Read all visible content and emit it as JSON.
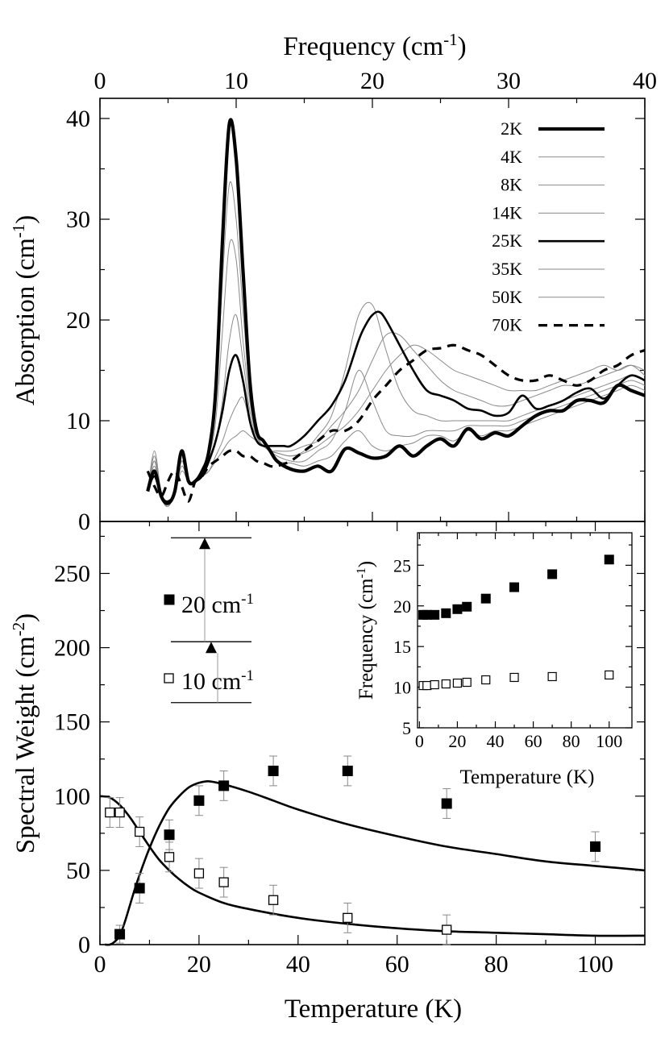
{
  "chart_data": [
    {
      "type": "line",
      "name": "absorption-spectra",
      "title": "",
      "xlabel": "Frequency (cm",
      "xlabel_sup": "-1",
      "xlabel_close": ")",
      "xlabel_position": "top",
      "ylabel": "Absorption (cm",
      "ylabel_sup": "-1",
      "ylabel_close": ")",
      "xlim": [
        0,
        40
      ],
      "ylim": [
        0,
        42
      ],
      "xticks": [
        0,
        10,
        20,
        30,
        40
      ],
      "yticks": [
        0,
        10,
        20,
        30,
        40
      ],
      "legend_position": "top-right",
      "series": [
        {
          "name": "2K",
          "style": "thick",
          "x": [
            3.5,
            4,
            4.5,
            5,
            5.5,
            6,
            6.5,
            7,
            7.5,
            8,
            8.5,
            9,
            9.5,
            10,
            10.5,
            11,
            11.5,
            12,
            12.5,
            13,
            14,
            15,
            16,
            17,
            18,
            19,
            20,
            21,
            22,
            23,
            24,
            25,
            26,
            27,
            28,
            29,
            30,
            31,
            32,
            33,
            34,
            35,
            36,
            37,
            38,
            39,
            40
          ],
          "y": [
            3,
            5,
            2.5,
            1.8,
            3,
            7,
            4,
            4,
            5,
            7,
            13,
            28,
            39.5,
            36,
            25,
            14,
            9,
            8,
            7,
            6,
            5.2,
            5,
            5.5,
            5,
            7.2,
            6.8,
            6.3,
            6.5,
            7.5,
            6.5,
            7.5,
            8.2,
            7.5,
            9.2,
            8.2,
            8.8,
            8.5,
            9.5,
            10.5,
            11,
            11,
            12,
            12,
            11.8,
            13.5,
            13,
            12.5
          ]
        },
        {
          "name": "4K",
          "style": "thin",
          "x": [
            3.5,
            4,
            4.5,
            5,
            5.5,
            6,
            6.5,
            7,
            7.5,
            8,
            8.5,
            9,
            9.5,
            10,
            10.5,
            11,
            11.5,
            12,
            12.5,
            13,
            14,
            15,
            16,
            17,
            18,
            19,
            20,
            21,
            22,
            23,
            24,
            25,
            26,
            27,
            28,
            29,
            30,
            31,
            32,
            33,
            34,
            35,
            36,
            37,
            38,
            39,
            40
          ],
          "y": [
            3,
            6,
            2.5,
            1.5,
            3,
            6,
            4,
            4,
            5,
            7,
            12,
            24,
            33.5,
            30,
            21,
            13,
            9,
            8,
            7,
            6,
            5.8,
            5.5,
            6,
            6.5,
            8,
            9,
            7.5,
            7,
            7.5,
            7.8,
            8.5,
            8.5,
            8,
            9,
            8.5,
            9,
            9,
            9.5,
            10,
            10.5,
            11,
            11.5,
            12,
            12.5,
            13,
            13.5,
            13
          ]
        },
        {
          "name": "8K",
          "style": "thin",
          "x": [
            3.5,
            4,
            4.5,
            5,
            5.5,
            6,
            6.5,
            7,
            7.5,
            8,
            8.5,
            9,
            9.5,
            10,
            10.5,
            11,
            11.5,
            12,
            12.5,
            13,
            14,
            15,
            16,
            17,
            18,
            19,
            20,
            21,
            22,
            23,
            24,
            25,
            26,
            27,
            28,
            29,
            30,
            31,
            32,
            33,
            34,
            35,
            36,
            37,
            38,
            39,
            40
          ],
          "y": [
            3,
            6.5,
            2.5,
            1.5,
            3,
            6,
            4,
            4,
            5,
            6.5,
            10,
            19,
            27.5,
            26,
            18,
            12,
            8.5,
            7.5,
            7,
            6.5,
            6,
            6,
            7,
            8,
            11,
            15,
            12,
            9,
            8.5,
            8.5,
            9,
            9,
            9,
            9.5,
            9.5,
            9.5,
            9.5,
            10,
            10.5,
            11,
            11.5,
            12,
            12.5,
            13,
            13.5,
            14,
            13.5
          ]
        },
        {
          "name": "14K",
          "style": "thin",
          "x": [
            3.5,
            4,
            4.5,
            5,
            5.5,
            6,
            6.5,
            7,
            7.5,
            8,
            8.5,
            9,
            9.5,
            10,
            10.5,
            11,
            11.5,
            12,
            12.5,
            13,
            14,
            15,
            16,
            17,
            18,
            19,
            20,
            21,
            22,
            23,
            24,
            25,
            26,
            27,
            28,
            29,
            30,
            31,
            32,
            33,
            34,
            35,
            36,
            37,
            38,
            39,
            40
          ],
          "y": [
            3,
            7,
            2.8,
            1.5,
            3,
            6,
            4,
            4,
            4.5,
            6,
            8,
            12,
            18,
            20.5,
            16,
            11,
            8.5,
            7.5,
            7,
            6.8,
            6.5,
            7,
            8.5,
            10.5,
            15,
            20.5,
            21.5,
            17,
            13,
            11,
            10.5,
            10,
            10,
            10,
            10,
            10,
            10,
            10.5,
            11,
            11.5,
            12,
            12.5,
            13,
            13.5,
            14,
            14.5,
            14
          ]
        },
        {
          "name": "25K",
          "style": "medium",
          "x": [
            3.5,
            4,
            4.5,
            5,
            5.5,
            6,
            6.5,
            7,
            7.5,
            8,
            8.5,
            9,
            9.5,
            10,
            10.5,
            11,
            11.5,
            12,
            12.5,
            13,
            13.5,
            14,
            15,
            16,
            17,
            18,
            19,
            19.5,
            20,
            20.5,
            21,
            22,
            23,
            24,
            25,
            26,
            27,
            28,
            29,
            30,
            31,
            32,
            33,
            34,
            35,
            36,
            37,
            38,
            39,
            40
          ],
          "y": [
            3,
            4.5,
            2.5,
            2,
            3,
            6.8,
            4,
            4,
            4.5,
            6,
            8,
            11,
            15,
            16.5,
            14,
            10,
            8,
            7.5,
            7.5,
            7.5,
            7.5,
            7.5,
            8.5,
            10,
            11.5,
            14,
            18,
            19.5,
            20.5,
            20.8,
            20,
            17.5,
            15,
            13,
            12.5,
            12,
            11.2,
            11,
            10.5,
            10.8,
            12.5,
            11.2,
            11.5,
            12,
            12.8,
            13.2,
            12.2,
            13.5,
            14.5,
            14
          ]
        },
        {
          "name": "35K",
          "style": "thin",
          "x": [
            3.5,
            4,
            4.5,
            5,
            5.5,
            6,
            6.5,
            7,
            7.5,
            8,
            8.5,
            9,
            9.5,
            10,
            10.5,
            11,
            11.5,
            12,
            12.5,
            13,
            14,
            15,
            16,
            17,
            18,
            19,
            20,
            21,
            22,
            23,
            24,
            25,
            26,
            27,
            28,
            29,
            30,
            31,
            32,
            33,
            34,
            35,
            36,
            37,
            38,
            39,
            40
          ],
          "y": [
            3,
            6,
            2.5,
            1.5,
            3,
            5.5,
            4,
            4,
            4.5,
            5,
            6.5,
            8,
            10,
            11.5,
            12.3,
            10,
            8.5,
            7.5,
            7,
            7,
            7,
            7.5,
            8,
            9.5,
            11,
            13,
            16,
            18.5,
            18.5,
            17,
            15.5,
            14,
            13,
            12.5,
            12,
            11.5,
            11.5,
            12,
            12.5,
            13,
            13.5,
            13.5,
            14,
            14.5,
            15,
            15.5,
            14.5
          ]
        },
        {
          "name": "50K",
          "style": "thin",
          "x": [
            3.5,
            4,
            4.5,
            5,
            5.5,
            6,
            6.5,
            7,
            7.5,
            8,
            8.5,
            9,
            9.5,
            10,
            10.5,
            11,
            11.5,
            12,
            12.5,
            13,
            14,
            15,
            16,
            17,
            18,
            19,
            20,
            21,
            22,
            23,
            24,
            25,
            26,
            27,
            28,
            29,
            30,
            31,
            32,
            33,
            34,
            35,
            36,
            37,
            38,
            39,
            40
          ],
          "y": [
            3,
            5.5,
            2.5,
            1.5,
            3,
            5,
            4,
            4,
            4.5,
            5,
            6,
            7,
            8,
            8.5,
            9,
            8.5,
            8,
            7.5,
            7,
            6.8,
            6.5,
            6.8,
            7.5,
            8.5,
            9.5,
            11,
            13,
            15,
            16.5,
            17.5,
            17,
            16,
            15,
            14.5,
            14,
            13.5,
            13,
            13,
            13,
            13.5,
            14,
            14.5,
            15,
            15.5,
            15,
            15.5,
            15
          ]
        },
        {
          "name": "70K",
          "style": "dashed",
          "x": [
            3.5,
            4,
            4.5,
            5,
            5.5,
            6,
            6.5,
            7,
            7.5,
            8,
            8.5,
            9,
            9.5,
            10,
            10.5,
            11,
            11.5,
            12,
            12.5,
            13,
            14,
            15,
            16,
            17,
            18,
            19,
            20,
            21,
            22,
            23,
            24,
            25,
            26,
            27,
            28,
            29,
            30,
            31,
            32,
            33,
            34,
            35,
            36,
            37,
            38,
            39,
            40
          ],
          "y": [
            5,
            3.5,
            2.5,
            4,
            5,
            3.5,
            2,
            4,
            4.5,
            5.5,
            6,
            6.5,
            7,
            7,
            6.5,
            6.5,
            6,
            5.8,
            5.5,
            5.5,
            6,
            7,
            8,
            9,
            9,
            10,
            12,
            13.5,
            15,
            16,
            17,
            17.2,
            17.5,
            17,
            16.5,
            15.5,
            14.5,
            14,
            14,
            14.5,
            14,
            13.5,
            14,
            15,
            15.5,
            16.5,
            17
          ]
        }
      ]
    },
    {
      "type": "scatter",
      "name": "spectral-weight",
      "title": "",
      "xlabel": "Temperature (K)",
      "ylabel": "Spectral Weight (cm",
      "ylabel_sup": "-2",
      "ylabel_close": ")",
      "xlim": [
        0,
        110
      ],
      "ylim": [
        0,
        285
      ],
      "xticks": [
        0,
        20,
        40,
        60,
        80,
        100
      ],
      "yticks": [
        0,
        50,
        100,
        150,
        200,
        250
      ],
      "legend_position": "top-left",
      "legend": [
        {
          "label": "20 cm",
          "sup": "-1",
          "marker": "filled-square",
          "level_upper_arrow": 274,
          "level_lower_arrow": 204
        },
        {
          "label": "10 cm",
          "sup": "-1",
          "marker": "open-square",
          "level_upper_arrow": 204,
          "level_lower_arrow": 163
        }
      ],
      "series": [
        {
          "name": "20 cm-1 mode",
          "marker": "filled-square",
          "x": [
            4,
            8,
            14,
            20,
            25,
            35,
            50,
            70,
            100
          ],
          "y": [
            7,
            38,
            74,
            97,
            107,
            117,
            117,
            95,
            66
          ],
          "err": [
            6,
            10,
            10,
            10,
            10,
            10,
            10,
            10,
            10
          ]
        },
        {
          "name": "10 cm-1 mode",
          "marker": "open-square",
          "x": [
            2,
            4,
            8,
            14,
            20,
            25,
            35,
            50,
            70
          ],
          "y": [
            89,
            89,
            76,
            59,
            48,
            42,
            30,
            18,
            10
          ],
          "err": [
            10,
            10,
            10,
            10,
            10,
            10,
            10,
            10,
            10
          ]
        }
      ],
      "fits": [
        {
          "name": "fit-20 cm-1",
          "x": [
            1,
            2,
            3,
            4,
            5,
            6,
            7,
            8,
            10,
            12,
            14,
            16,
            18,
            20,
            22,
            25,
            30,
            35,
            40,
            50,
            60,
            70,
            80,
            90,
            100,
            110
          ],
          "y": [
            0,
            0,
            2,
            6,
            15,
            26,
            37,
            47,
            65,
            80,
            92,
            100,
            106,
            109,
            110,
            108,
            103,
            97,
            91,
            81,
            73,
            66,
            61,
            56,
            53,
            50
          ]
        },
        {
          "name": "fit-10 cm-1",
          "x": [
            0,
            2,
            4,
            6,
            8,
            10,
            12,
            14,
            16,
            18,
            20,
            25,
            30,
            40,
            50,
            60,
            70,
            80,
            90,
            100,
            110
          ],
          "y": [
            100,
            99,
            94,
            86,
            76,
            66,
            57,
            50,
            44,
            39,
            35,
            28,
            24,
            18,
            14,
            11,
            9,
            8,
            7,
            6,
            6
          ]
        }
      ]
    },
    {
      "type": "scatter",
      "name": "inset-frequency",
      "title": "",
      "xlabel": "Temperature (K)",
      "ylabel": "Frequency (cm",
      "ylabel_sup": "-1",
      "ylabel_close": ")",
      "xlim": [
        -1,
        112
      ],
      "ylim": [
        5,
        29
      ],
      "xticks": [
        0,
        20,
        40,
        60,
        80,
        100
      ],
      "yticks": [
        5,
        10,
        15,
        20,
        25
      ],
      "series": [
        {
          "name": "upper mode",
          "marker": "filled-square",
          "x": [
            2,
            4,
            8,
            14,
            20,
            25,
            35,
            50,
            70,
            100
          ],
          "y": [
            18.9,
            18.9,
            18.9,
            19.1,
            19.6,
            19.9,
            20.9,
            22.3,
            23.9,
            25.7
          ]
        },
        {
          "name": "lower mode",
          "marker": "open-square",
          "x": [
            2,
            4,
            8,
            14,
            20,
            25,
            35,
            50,
            70,
            100
          ],
          "y": [
            10.2,
            10.2,
            10.3,
            10.4,
            10.5,
            10.6,
            10.9,
            11.2,
            11.3,
            11.5
          ]
        }
      ]
    }
  ]
}
